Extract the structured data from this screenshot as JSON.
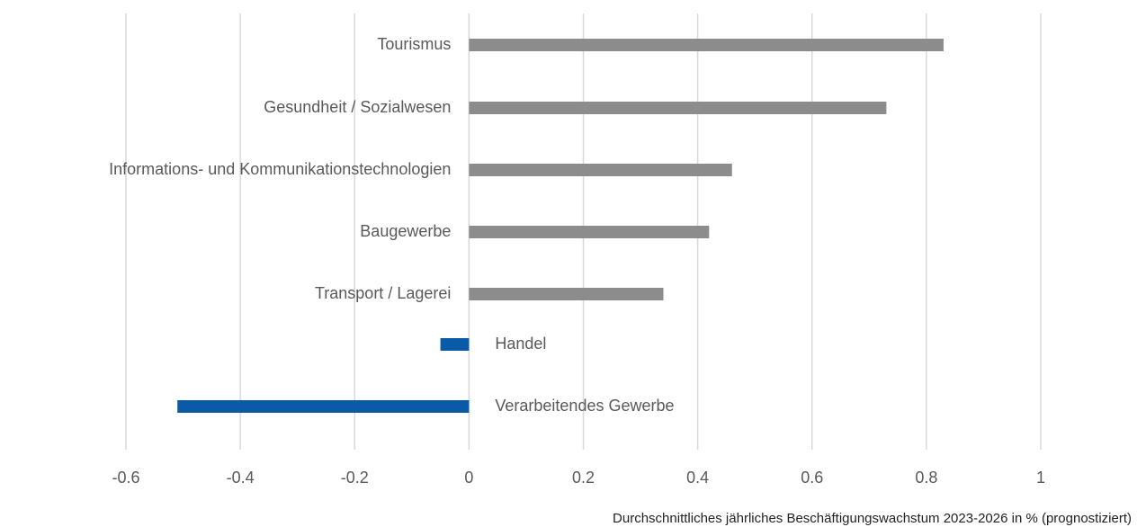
{
  "chart_data": {
    "type": "barh",
    "x_label": "Durchschnittliches jährliches Beschäftigungswachstum 2023-2026 in % (prognostiziert)",
    "categories": [
      "Tourismus",
      "Gesundheit / Sozialwesen",
      "Informations- und Kommunikationstechnologien",
      "Baugewerbe",
      "Transport / Lagerei",
      "Handel",
      "Verarbeitendes Gewerbe"
    ],
    "values": [
      0.83,
      0.73,
      0.46,
      0.42,
      0.34,
      -0.05,
      -0.51
    ],
    "colors": [
      "#8c8c8c",
      "#8c8c8c",
      "#8c8c8c",
      "#8c8c8c",
      "#8c8c8c",
      "#0a5aa8",
      "#0a5aa8"
    ],
    "xlim": [
      -0.6,
      1
    ],
    "xticks": [
      -0.6,
      -0.4,
      -0.2,
      0,
      0.2,
      0.4,
      0.6,
      0.8,
      1
    ],
    "grid": true
  }
}
